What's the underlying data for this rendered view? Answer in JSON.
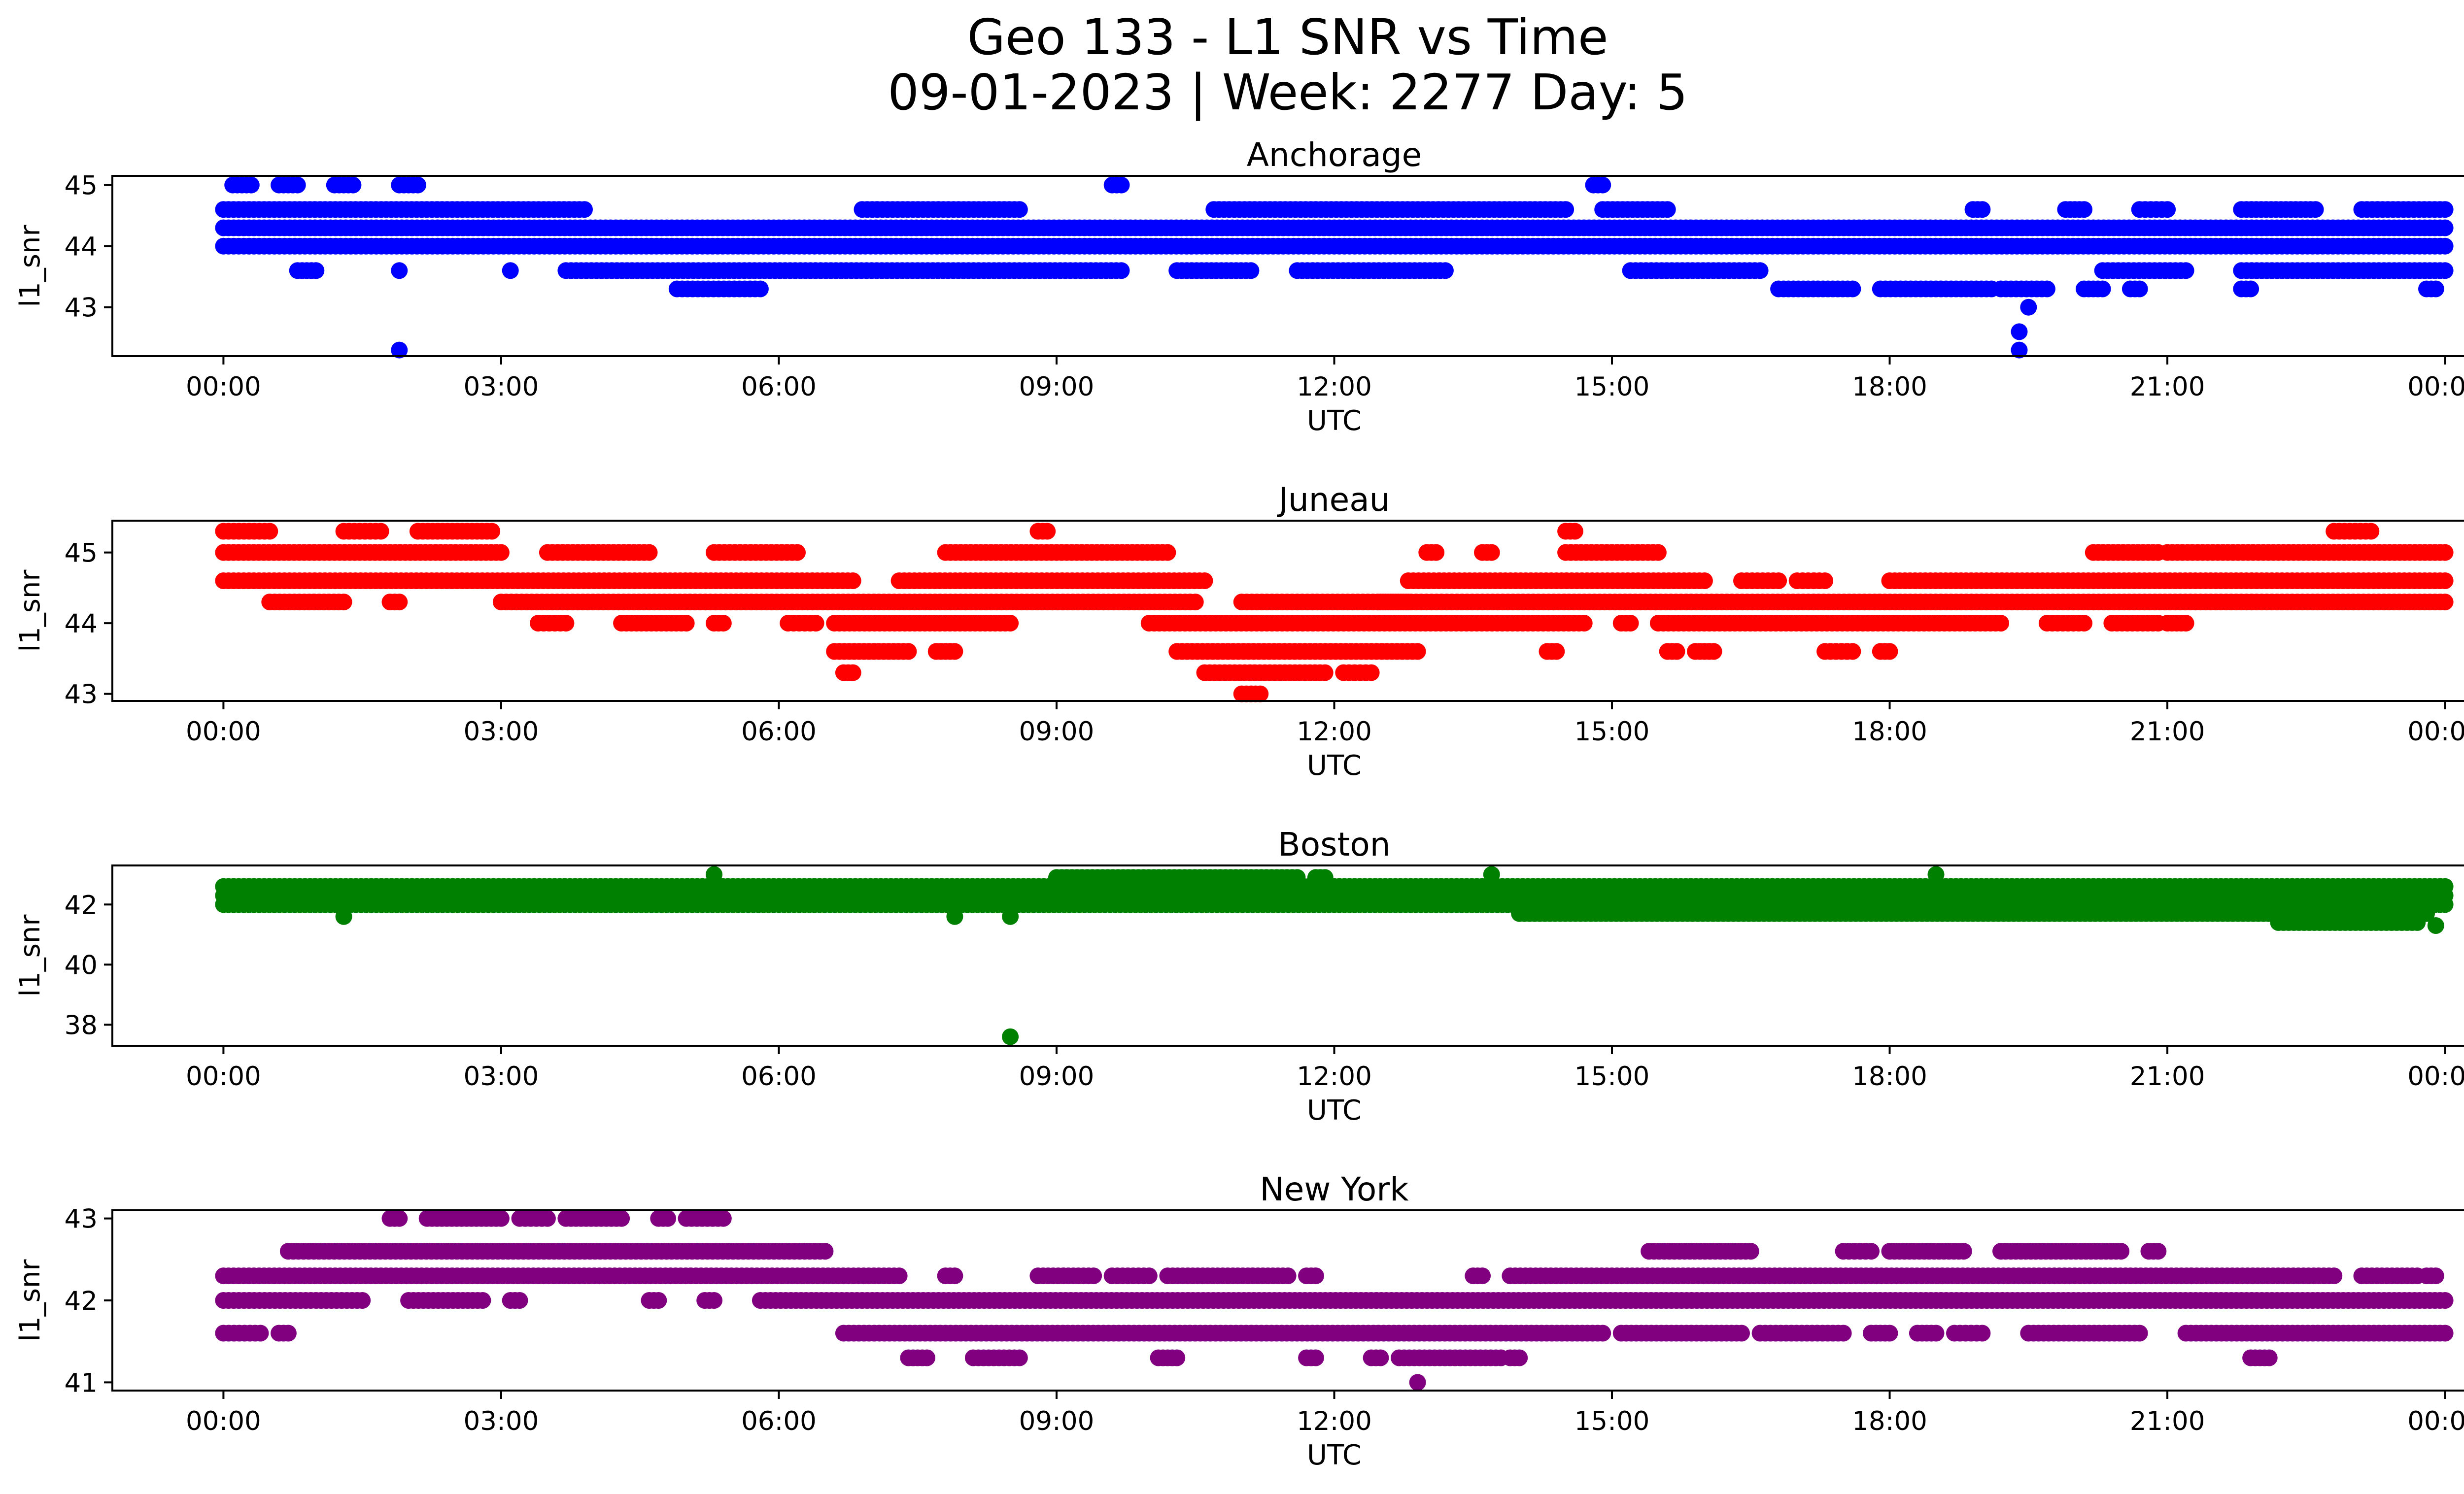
{
  "figure": {
    "title_line1": "Geo 133 - L1 SNR vs Time",
    "title_line2": "09-01-2023 | Week: 2277 Day: 5"
  },
  "chart_data": [
    {
      "type": "scatter",
      "title": "Anchorage",
      "xlabel": "UTC",
      "ylabel": "l1_snr",
      "color": "#0000ff",
      "xticks": [
        "00:00",
        "03:00",
        "06:00",
        "09:00",
        "12:00",
        "15:00",
        "18:00",
        "21:00",
        "00:00"
      ],
      "xlim_hours": [
        -1.2,
        25.2
      ],
      "ylim": [
        42.2,
        45.15
      ],
      "yticks": [
        43,
        44,
        45
      ],
      "levels": [
        {
          "y": 44.3,
          "ranges": [
            [
              0,
              24
            ]
          ]
        },
        {
          "y": 44.0,
          "ranges": [
            [
              0,
              24
            ]
          ]
        },
        {
          "y": 44.6,
          "ranges": [
            [
              0,
              3.9
            ],
            [
              6.9,
              8.6
            ],
            [
              10.7,
              14.5
            ],
            [
              14.9,
              15.6
            ],
            [
              18.9,
              19.0
            ],
            [
              19.9,
              20.1
            ],
            [
              20.7,
              21.0
            ],
            [
              21.8,
              22.6
            ],
            [
              23.1,
              24.0
            ]
          ]
        },
        {
          "y": 43.6,
          "ranges": [
            [
              0.8,
              1.0
            ],
            [
              3.7,
              9.7
            ],
            [
              10.3,
              11.1
            ],
            [
              11.6,
              13.2
            ],
            [
              15.2,
              16.6
            ],
            [
              20.3,
              21.2
            ],
            [
              21.8,
              24.0
            ]
          ]
        },
        {
          "y": 43.3,
          "ranges": [
            [
              4.9,
              5.8
            ],
            [
              16.8,
              17.6
            ],
            [
              17.9,
              19.1
            ],
            [
              19.2,
              19.7
            ],
            [
              20.1,
              20.3
            ],
            [
              20.6,
              20.7
            ],
            [
              21.8,
              21.9
            ],
            [
              23.8,
              23.9
            ]
          ]
        },
        {
          "y": 45.0,
          "ranges": [
            [
              0.1,
              0.3
            ],
            [
              0.6,
              0.8
            ],
            [
              1.2,
              1.4
            ],
            [
              1.9,
              2.1
            ],
            [
              9.6,
              9.7
            ],
            [
              14.8,
              14.9
            ]
          ]
        }
      ],
      "points": [
        [
          1.9,
          42.3
        ],
        [
          19.4,
          42.6
        ],
        [
          19.4,
          42.3
        ],
        [
          19.5,
          43.0
        ],
        [
          3.1,
          43.6
        ],
        [
          1.9,
          43.6
        ]
      ]
    },
    {
      "type": "scatter",
      "title": "Juneau",
      "xlabel": "UTC",
      "ylabel": "l1_snr",
      "color": "#ff0000",
      "xticks": [
        "00:00",
        "03:00",
        "06:00",
        "09:00",
        "12:00",
        "15:00",
        "18:00",
        "21:00",
        "00:00"
      ],
      "xlim_hours": [
        -1.2,
        25.2
      ],
      "ylim": [
        42.9,
        45.45
      ],
      "yticks": [
        43,
        44,
        45
      ],
      "levels": [
        {
          "y": 45.3,
          "ranges": [
            [
              0,
              0.5
            ],
            [
              1.3,
              1.7
            ],
            [
              2.1,
              2.9
            ],
            [
              8.8,
              8.9
            ],
            [
              14.5,
              14.6
            ],
            [
              22.8,
              23.2
            ]
          ]
        },
        {
          "y": 45.0,
          "ranges": [
            [
              0,
              3.0
            ],
            [
              3.5,
              4.6
            ],
            [
              5.3,
              6.2
            ],
            [
              7.8,
              10.2
            ],
            [
              13.0,
              13.1
            ],
            [
              13.6,
              13.7
            ],
            [
              14.5,
              15.5
            ],
            [
              20.2,
              20.9
            ],
            [
              21.0,
              24.0
            ]
          ]
        },
        {
          "y": 44.6,
          "ranges": [
            [
              0,
              6.8
            ],
            [
              7.3,
              10.6
            ],
            [
              12.8,
              16.0
            ],
            [
              16.4,
              16.8
            ],
            [
              17.0,
              17.3
            ],
            [
              18.0,
              24.0
            ]
          ]
        },
        {
          "y": 44.3,
          "ranges": [
            [
              0.5,
              1.3
            ],
            [
              1.8,
              1.9
            ],
            [
              3.0,
              10.5
            ],
            [
              11.0,
              12.8
            ],
            [
              12.5,
              24.0
            ]
          ]
        },
        {
          "y": 44.0,
          "ranges": [
            [
              3.4,
              3.7
            ],
            [
              4.3,
              5.0
            ],
            [
              5.3,
              5.4
            ],
            [
              6.1,
              6.4
            ],
            [
              6.6,
              8.5
            ],
            [
              10.0,
              14.7
            ],
            [
              15.1,
              15.2
            ],
            [
              15.5,
              19.2
            ],
            [
              19.7,
              20.1
            ],
            [
              20.4,
              20.9
            ],
            [
              21.0,
              21.2
            ]
          ]
        },
        {
          "y": 43.6,
          "ranges": [
            [
              6.6,
              7.4
            ],
            [
              7.7,
              7.9
            ],
            [
              10.3,
              12.9
            ],
            [
              14.3,
              14.4
            ],
            [
              15.6,
              15.7
            ],
            [
              15.9,
              16.1
            ],
            [
              17.3,
              17.6
            ],
            [
              17.9,
              18.0
            ]
          ]
        },
        {
          "y": 43.3,
          "ranges": [
            [
              6.7,
              6.8
            ],
            [
              10.6,
              11.9
            ],
            [
              12.1,
              12.4
            ]
          ]
        },
        {
          "y": 43.0,
          "ranges": [
            [
              11.0,
              11.2
            ]
          ]
        }
      ],
      "points": []
    },
    {
      "type": "scatter",
      "title": "Boston",
      "xlabel": "UTC",
      "ylabel": "l1_snr",
      "color": "#008000",
      "xticks": [
        "00:00",
        "03:00",
        "06:00",
        "09:00",
        "12:00",
        "15:00",
        "18:00",
        "21:00",
        "00:00"
      ],
      "xlim_hours": [
        -1.2,
        25.2
      ],
      "ylim": [
        37.3,
        43.3
      ],
      "yticks": [
        38,
        40,
        42
      ],
      "levels": [
        {
          "y": 42.6,
          "ranges": [
            [
              0,
              24
            ]
          ]
        },
        {
          "y": 42.3,
          "ranges": [
            [
              0,
              24
            ]
          ]
        },
        {
          "y": 42.0,
          "ranges": [
            [
              0,
              24
            ]
          ]
        },
        {
          "y": 41.7,
          "ranges": [
            [
              14.0,
              23.8
            ]
          ]
        },
        {
          "y": 42.9,
          "ranges": [
            [
              9.0,
              11.6
            ],
            [
              11.8,
              11.9
            ]
          ]
        },
        {
          "y": 41.4,
          "ranges": [
            [
              22.2,
              23.7
            ]
          ]
        }
      ],
      "points": [
        [
          8.5,
          37.6
        ],
        [
          5.3,
          43.0
        ],
        [
          13.7,
          43.0
        ],
        [
          18.5,
          43.0
        ],
        [
          1.3,
          41.6
        ],
        [
          7.9,
          41.6
        ],
        [
          8.5,
          41.6
        ],
        [
          23.9,
          41.3
        ]
      ]
    },
    {
      "type": "scatter",
      "title": "New York",
      "xlabel": "UTC",
      "ylabel": "l1_snr",
      "color": "#800080",
      "xticks": [
        "00:00",
        "03:00",
        "06:00",
        "09:00",
        "12:00",
        "15:00",
        "18:00",
        "21:00",
        "00:00"
      ],
      "xlim_hours": [
        -1.2,
        25.2
      ],
      "ylim": [
        40.9,
        43.1
      ],
      "yticks": [
        41,
        42,
        43
      ],
      "levels": [
        {
          "y": 43.0,
          "ranges": [
            [
              1.8,
              1.9
            ],
            [
              2.2,
              3.0
            ],
            [
              3.2,
              3.5
            ],
            [
              3.7,
              4.3
            ],
            [
              4.7,
              4.8
            ],
            [
              5.0,
              5.4
            ]
          ]
        },
        {
          "y": 42.6,
          "ranges": [
            [
              0.7,
              6.5
            ],
            [
              15.4,
              16.5
            ],
            [
              17.5,
              17.8
            ],
            [
              18.0,
              18.8
            ],
            [
              19.2,
              20.5
            ],
            [
              20.8,
              20.9
            ]
          ]
        },
        {
          "y": 42.3,
          "ranges": [
            [
              0,
              7.3
            ],
            [
              7.8,
              7.9
            ],
            [
              8.8,
              9.4
            ],
            [
              9.6,
              10.0
            ],
            [
              10.2,
              11.5
            ],
            [
              11.7,
              11.8
            ],
            [
              13.5,
              13.6
            ],
            [
              13.9,
              22.8
            ],
            [
              23.1,
              23.7
            ],
            [
              23.8,
              23.9
            ]
          ]
        },
        {
          "y": 42.0,
          "ranges": [
            [
              0,
              1.5
            ],
            [
              2.0,
              2.8
            ],
            [
              3.1,
              3.2
            ],
            [
              4.6,
              4.7
            ],
            [
              5.2,
              5.3
            ],
            [
              5.8,
              24.0
            ]
          ]
        },
        {
          "y": 41.6,
          "ranges": [
            [
              0,
              0.4
            ],
            [
              0.6,
              0.7
            ],
            [
              6.7,
              14.9
            ],
            [
              15.1,
              16.4
            ],
            [
              16.6,
              17.5
            ],
            [
              17.8,
              18.0
            ],
            [
              18.3,
              18.5
            ],
            [
              18.7,
              19.0
            ],
            [
              19.5,
              20.7
            ],
            [
              21.2,
              24.0
            ]
          ]
        },
        {
          "y": 41.3,
          "ranges": [
            [
              7.4,
              7.6
            ],
            [
              8.1,
              8.6
            ],
            [
              10.1,
              10.3
            ],
            [
              11.7,
              11.8
            ],
            [
              12.4,
              12.5
            ],
            [
              12.7,
              13.8
            ],
            [
              13.9,
              14.0
            ],
            [
              21.9,
              22.1
            ]
          ]
        }
      ],
      "points": [
        [
          12.9,
          41.0
        ]
      ]
    }
  ]
}
